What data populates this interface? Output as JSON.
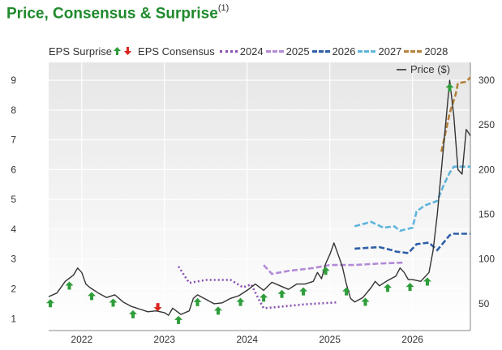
{
  "title": "Price, Consensus & Surprise",
  "title_sup": "(1)",
  "legend": {
    "surprise_label": "EPS Surprise",
    "consensus_label": "EPS Consensus",
    "price_label": "Price ($)",
    "years": [
      {
        "label": "2024",
        "color": "#8a4fb3",
        "style": "dotted"
      },
      {
        "label": "2025",
        "color": "#b38ad6",
        "style": "dashed"
      },
      {
        "label": "2026",
        "color": "#2e5fa8",
        "style": "dashed"
      },
      {
        "label": "2027",
        "color": "#5fb4dc",
        "style": "dashed"
      },
      {
        "label": "2028",
        "color": "#b5823a",
        "style": "dashed"
      }
    ]
  },
  "chart_data": {
    "type": "line",
    "x_ticks": [
      "2022",
      "2023",
      "2024",
      "2025",
      "2026"
    ],
    "x_range": [
      2021.6,
      2026.7
    ],
    "y_left": {
      "ticks": [
        1,
        2,
        3,
        4,
        5,
        6,
        7,
        8,
        9
      ],
      "range": [
        0.6,
        9.6
      ]
    },
    "y_right": {
      "ticks": [
        50,
        100,
        150,
        200,
        250,
        300
      ],
      "range": [
        20,
        320
      ]
    },
    "price": {
      "name": "Price ($)",
      "color": "#333333",
      "points": [
        [
          2021.6,
          58
        ],
        [
          2021.7,
          62
        ],
        [
          2021.8,
          75
        ],
        [
          2021.9,
          82
        ],
        [
          2021.95,
          90
        ],
        [
          2022.0,
          85
        ],
        [
          2022.05,
          72
        ],
        [
          2022.1,
          68
        ],
        [
          2022.2,
          62
        ],
        [
          2022.3,
          57
        ],
        [
          2022.4,
          60
        ],
        [
          2022.5,
          52
        ],
        [
          2022.6,
          47
        ],
        [
          2022.7,
          44
        ],
        [
          2022.8,
          41
        ],
        [
          2022.9,
          42
        ],
        [
          2023.0,
          40
        ],
        [
          2023.05,
          37
        ],
        [
          2023.1,
          45
        ],
        [
          2023.2,
          38
        ],
        [
          2023.3,
          42
        ],
        [
          2023.35,
          56
        ],
        [
          2023.4,
          60
        ],
        [
          2023.5,
          55
        ],
        [
          2023.6,
          50
        ],
        [
          2023.7,
          51
        ],
        [
          2023.8,
          56
        ],
        [
          2023.9,
          59
        ],
        [
          2024.0,
          65
        ],
        [
          2024.1,
          72
        ],
        [
          2024.2,
          65
        ],
        [
          2024.3,
          74
        ],
        [
          2024.4,
          70
        ],
        [
          2024.5,
          66
        ],
        [
          2024.6,
          72
        ],
        [
          2024.7,
          72
        ],
        [
          2024.8,
          75
        ],
        [
          2024.85,
          85
        ],
        [
          2024.9,
          78
        ],
        [
          2024.95,
          95
        ],
        [
          2025.0,
          105
        ],
        [
          2025.05,
          118
        ],
        [
          2025.1,
          105
        ],
        [
          2025.15,
          92
        ],
        [
          2025.2,
          72
        ],
        [
          2025.25,
          56
        ],
        [
          2025.3,
          52
        ],
        [
          2025.4,
          57
        ],
        [
          2025.5,
          68
        ],
        [
          2025.55,
          75
        ],
        [
          2025.6,
          70
        ],
        [
          2025.7,
          76
        ],
        [
          2025.8,
          81
        ],
        [
          2025.85,
          90
        ],
        [
          2025.9,
          85
        ],
        [
          2025.95,
          77
        ],
        [
          2026.0,
          77
        ],
        [
          2026.1,
          75
        ],
        [
          2026.2,
          85
        ],
        [
          2026.25,
          110
        ],
        [
          2026.3,
          150
        ],
        [
          2026.35,
          200
        ],
        [
          2026.4,
          250
        ],
        [
          2026.45,
          300
        ],
        [
          2026.5,
          260
        ],
        [
          2026.55,
          200
        ],
        [
          2026.6,
          195
        ],
        [
          2026.65,
          245
        ],
        [
          2026.7,
          238
        ]
      ]
    },
    "consensus": [
      {
        "name": "2024",
        "color": "#8a4fb3",
        "style": "dotted",
        "points": [
          [
            2023.17,
            2.75
          ],
          [
            2023.3,
            2.2
          ],
          [
            2023.5,
            2.3
          ],
          [
            2023.8,
            2.3
          ],
          [
            2023.95,
            2.05
          ],
          [
            2024.05,
            2.15
          ],
          [
            2024.15,
            1.6
          ],
          [
            2024.2,
            1.35
          ],
          [
            2024.4,
            1.4
          ],
          [
            2024.7,
            1.48
          ],
          [
            2025.1,
            1.55
          ]
        ]
      },
      {
        "name": "2025",
        "color": "#b38ad6",
        "style": "dashed",
        "points": [
          [
            2024.2,
            2.8
          ],
          [
            2024.3,
            2.5
          ],
          [
            2024.5,
            2.6
          ],
          [
            2024.8,
            2.7
          ],
          [
            2025.0,
            2.8
          ],
          [
            2025.1,
            2.8
          ],
          [
            2025.3,
            2.8
          ],
          [
            2025.6,
            2.85
          ],
          [
            2025.9,
            2.88
          ]
        ]
      },
      {
        "name": "2026",
        "color": "#2e5fa8",
        "style": "dashed",
        "points": [
          [
            2025.3,
            3.35
          ],
          [
            2025.6,
            3.4
          ],
          [
            2025.75,
            3.3
          ],
          [
            2025.8,
            3.25
          ],
          [
            2025.95,
            3.2
          ],
          [
            2026.05,
            3.5
          ],
          [
            2026.2,
            3.55
          ],
          [
            2026.3,
            3.3
          ],
          [
            2026.45,
            3.8
          ],
          [
            2026.5,
            3.85
          ],
          [
            2026.7,
            3.85
          ]
        ]
      },
      {
        "name": "2027",
        "color": "#5fb4dc",
        "style": "dashed",
        "points": [
          [
            2025.3,
            4.1
          ],
          [
            2025.5,
            4.25
          ],
          [
            2025.65,
            4.05
          ],
          [
            2025.78,
            4.1
          ],
          [
            2025.85,
            3.95
          ],
          [
            2026.0,
            4.05
          ],
          [
            2026.05,
            4.6
          ],
          [
            2026.15,
            4.8
          ],
          [
            2026.3,
            4.95
          ],
          [
            2026.38,
            5.5
          ],
          [
            2026.45,
            5.9
          ],
          [
            2026.5,
            6.1
          ],
          [
            2026.7,
            6.1
          ]
        ]
      },
      {
        "name": "2028",
        "color": "#b5823a",
        "style": "dashed",
        "points": [
          [
            2026.35,
            6.6
          ],
          [
            2026.45,
            7.9
          ],
          [
            2026.52,
            8.5
          ],
          [
            2026.55,
            8.9
          ],
          [
            2026.65,
            8.95
          ],
          [
            2026.7,
            9.1
          ]
        ]
      }
    ],
    "surprises": [
      {
        "x": 2021.62,
        "dir": "up"
      },
      {
        "x": 2021.85,
        "dir": "up"
      },
      {
        "x": 2022.12,
        "dir": "up"
      },
      {
        "x": 2022.38,
        "dir": "up"
      },
      {
        "x": 2022.62,
        "dir": "up"
      },
      {
        "x": 2022.92,
        "dir": "down"
      },
      {
        "x": 2023.17,
        "dir": "up"
      },
      {
        "x": 2023.4,
        "dir": "up"
      },
      {
        "x": 2023.65,
        "dir": "up"
      },
      {
        "x": 2023.92,
        "dir": "up"
      },
      {
        "x": 2024.2,
        "dir": "up"
      },
      {
        "x": 2024.42,
        "dir": "up"
      },
      {
        "x": 2024.68,
        "dir": "up"
      },
      {
        "x": 2024.95,
        "dir": "up"
      },
      {
        "x": 2025.2,
        "dir": "up"
      },
      {
        "x": 2025.43,
        "dir": "up"
      },
      {
        "x": 2025.7,
        "dir": "up"
      },
      {
        "x": 2025.97,
        "dir": "up"
      },
      {
        "x": 2026.18,
        "dir": "up"
      },
      {
        "x": 2026.45,
        "dir": "up"
      }
    ],
    "grid": true,
    "legend_position": "top"
  }
}
